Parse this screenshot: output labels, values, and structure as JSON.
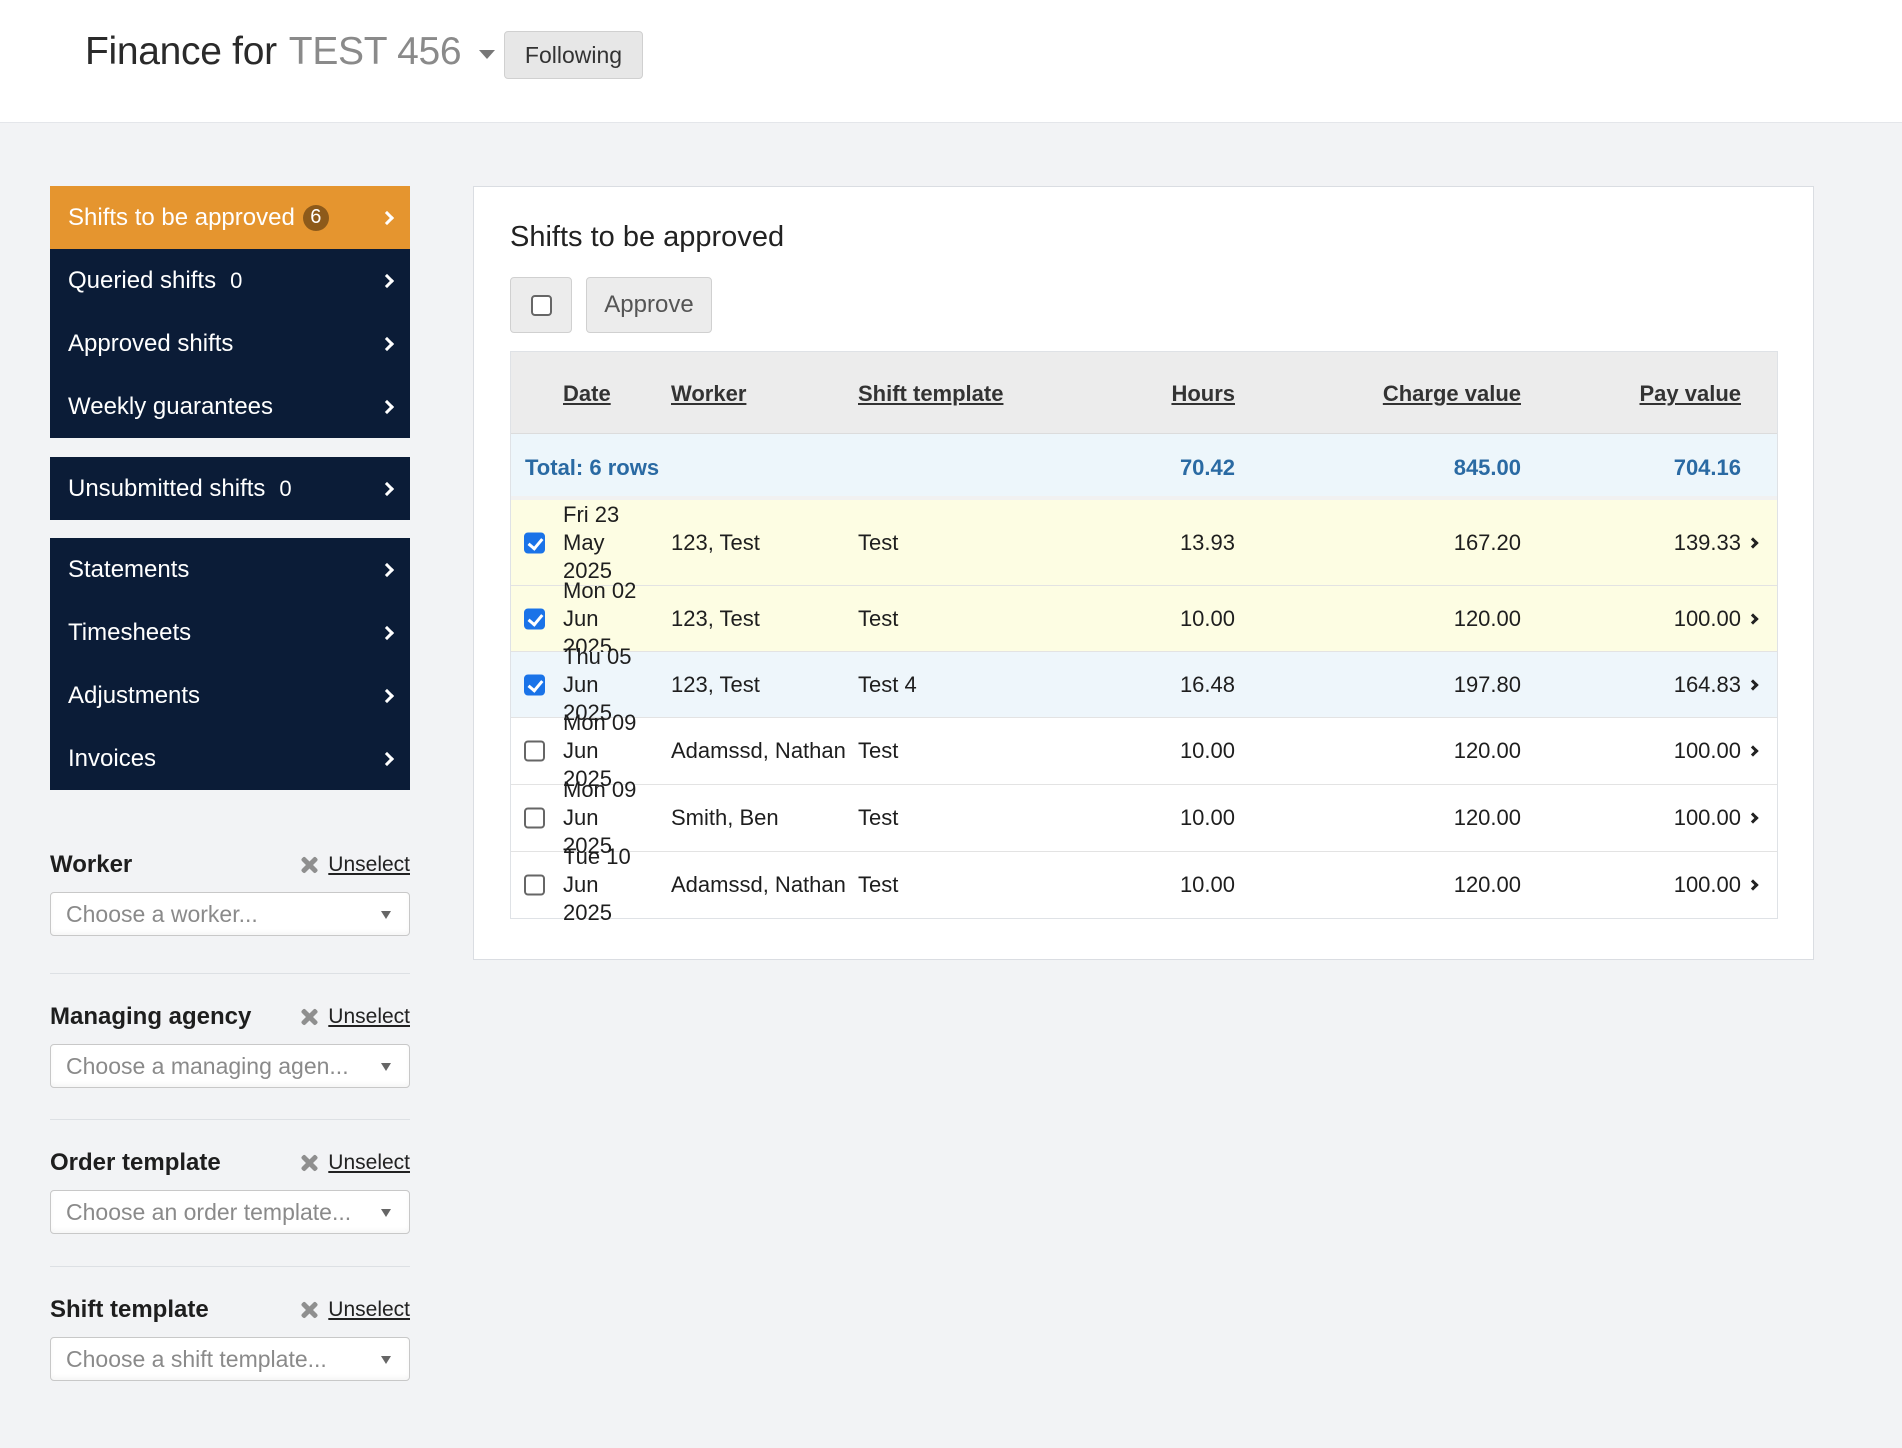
{
  "header": {
    "title_prefix": "Finance for",
    "client_name": "TEST 456",
    "follow_label": "Following"
  },
  "sidebar": {
    "group1": [
      {
        "label": "Shifts to be approved",
        "badge": "6"
      },
      {
        "label": "Queried shifts",
        "count": "0"
      },
      {
        "label": "Approved shifts"
      },
      {
        "label": "Weekly guarantees"
      }
    ],
    "group2": [
      {
        "label": "Unsubmitted shifts",
        "count": "0"
      }
    ],
    "group3": [
      {
        "label": "Statements"
      },
      {
        "label": "Timesheets"
      },
      {
        "label": "Adjustments"
      },
      {
        "label": "Invoices"
      }
    ]
  },
  "filters": [
    {
      "label": "Worker",
      "unselect": "Unselect",
      "placeholder": "Choose a worker..."
    },
    {
      "label": "Managing agency",
      "unselect": "Unselect",
      "placeholder": "Choose a managing agen..."
    },
    {
      "label": "Order template",
      "unselect": "Unselect",
      "placeholder": "Choose an order template..."
    },
    {
      "label": "Shift template",
      "unselect": "Unselect",
      "placeholder": "Choose a shift template..."
    }
  ],
  "main": {
    "title": "Shifts to be approved",
    "approve_label": "Approve",
    "columns": {
      "date": "Date",
      "worker": "Worker",
      "shift_template": "Shift template",
      "hours": "Hours",
      "charge_value": "Charge value",
      "pay_value": "Pay value"
    },
    "total": {
      "label": "Total: 6 rows",
      "hours": "70.42",
      "charge": "845.00",
      "pay": "704.16"
    },
    "rows": [
      {
        "date": "Fri 23 May 2025",
        "worker": "123, Test",
        "template": "Test",
        "hours": "13.93",
        "charge": "167.20",
        "pay": "139.33",
        "checked": true
      },
      {
        "date": "Mon 02 Jun 2025",
        "worker": "123, Test",
        "template": "Test",
        "hours": "10.00",
        "charge": "120.00",
        "pay": "100.00",
        "checked": true
      },
      {
        "date": "Thu 05 Jun 2025",
        "worker": "123, Test",
        "template": "Test 4",
        "hours": "16.48",
        "charge": "197.80",
        "pay": "164.83",
        "checked": true
      },
      {
        "date": "Mon 09 Jun 2025",
        "worker": "Adamssd, Nathan",
        "template": "Test",
        "hours": "10.00",
        "charge": "120.00",
        "pay": "100.00",
        "checked": false
      },
      {
        "date": "Mon 09 Jun 2025",
        "worker": "Smith, Ben",
        "template": "Test",
        "hours": "10.00",
        "charge": "120.00",
        "pay": "100.00",
        "checked": false
      },
      {
        "date": "Tue 10 Jun 2025",
        "worker": "Adamssd, Nathan",
        "template": "Test",
        "hours": "10.00",
        "charge": "120.00",
        "pay": "100.00",
        "checked": false
      }
    ]
  },
  "colors": {
    "nav_bg": "#0b1c37",
    "nav_active": "#e5952f",
    "total_text": "#2a6aa3",
    "row_highlight": "#fdfde3",
    "checkbox_checked": "#1a73e8"
  }
}
